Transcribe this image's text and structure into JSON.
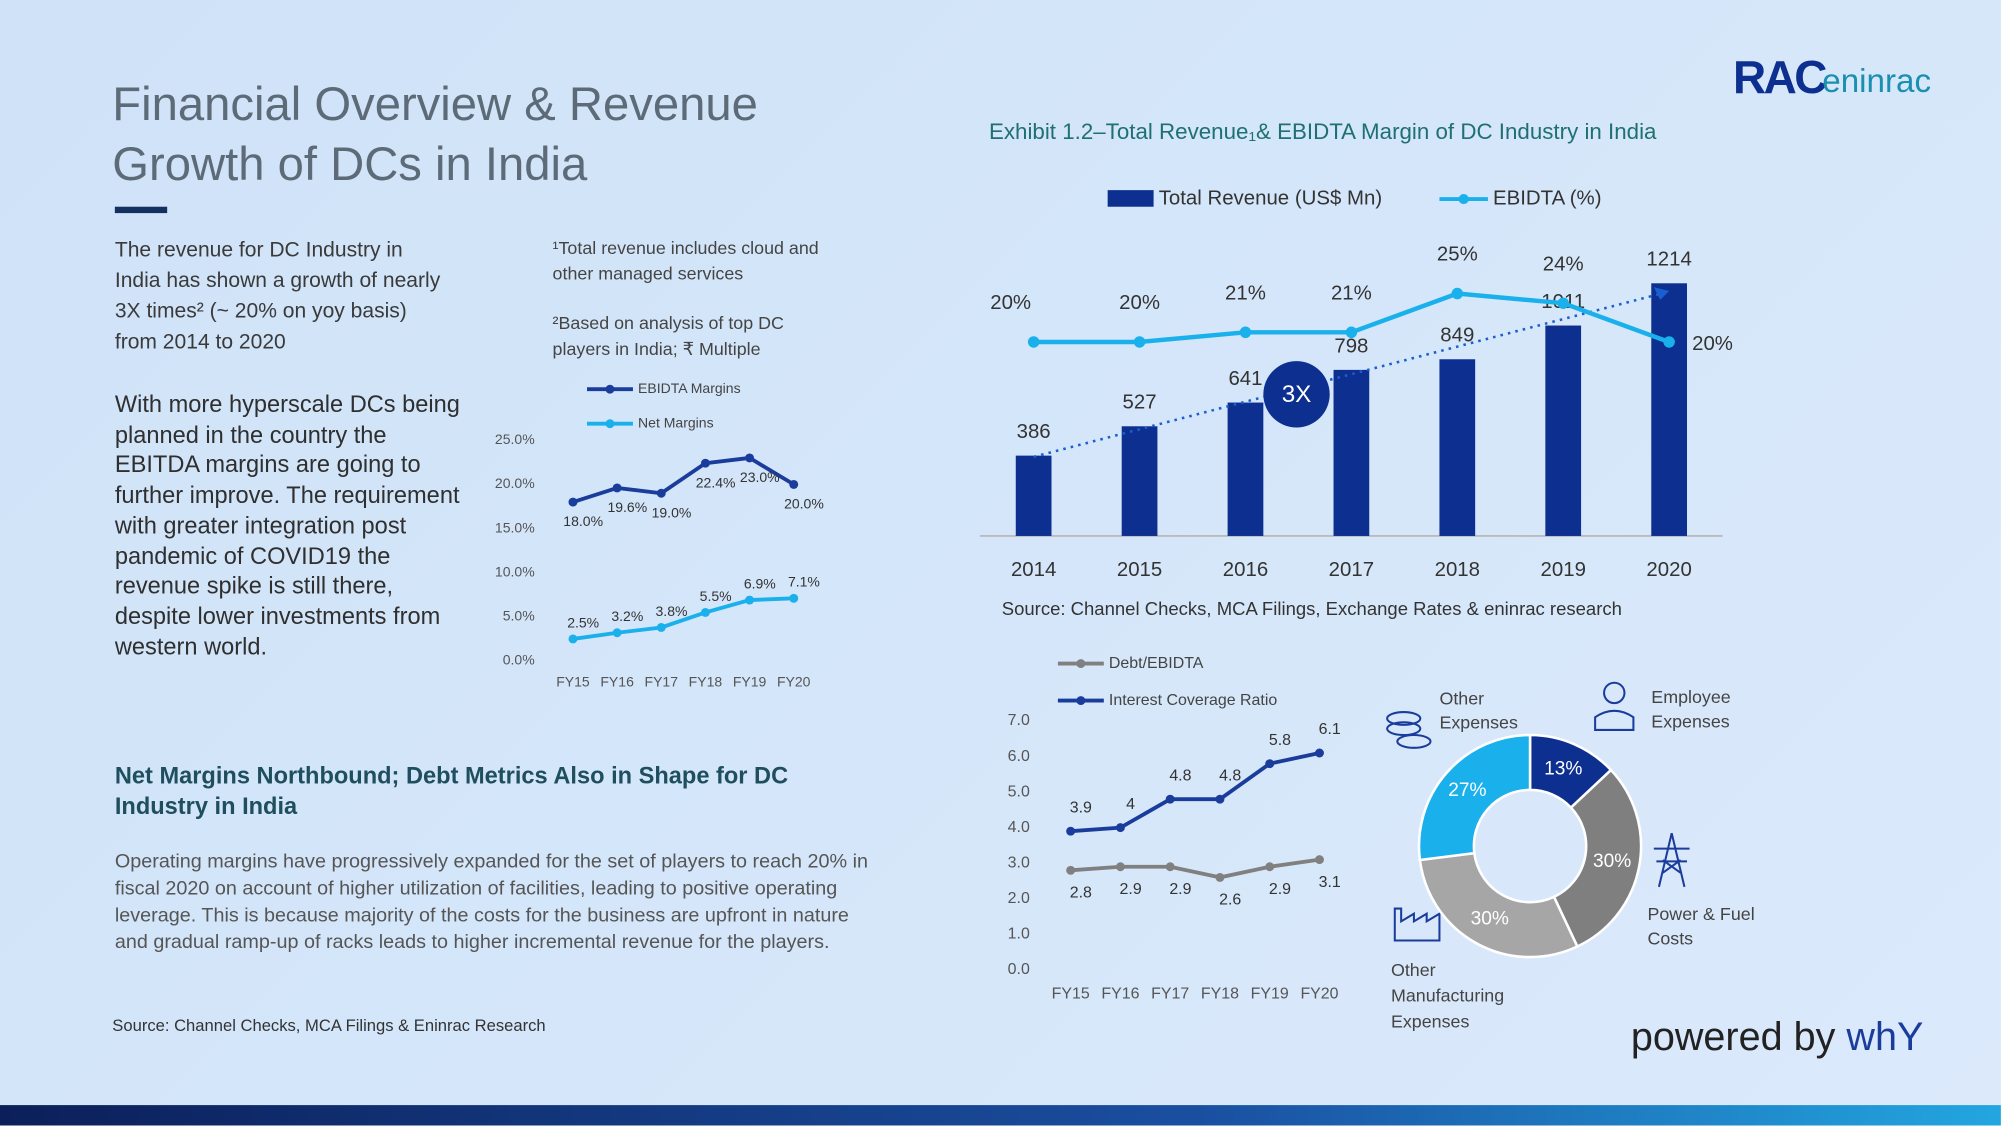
{
  "logo": {
    "mark": "RAC",
    "name": "eninrac"
  },
  "title": "Financial Overview & Revenue Growth of DCs in India",
  "intro": "The revenue for DC Industry in India has shown a growth of nearly 3X times² (~ 20% on yoy basis) from 2014  to 2020",
  "notes": [
    "¹Total revenue includes cloud and other managed services",
    "²Based on analysis of top DC players in India; ₹ Multiple"
  ],
  "outlook": "With more hyperscale DCs being planned in the country the EBITDA margins are going to further improve.  The requirement with greater integration post pandemic of COVID19 the revenue spike is still there, despite lower investments from western world.",
  "subheading": "Net Margins Northbound; Debt Metrics Also in Shape for DC Industry in India",
  "body": "Operating margins have progressively expanded for the set of players to reach 20% in fiscal 2020 on account of higher utilization of facilities, leading to positive operating leverage. This is because majority of the costs for the business are upfront in nature and gradual ramp-up of racks leads to higher incremental revenue for the players.",
  "source": "Source: Channel Checks, MCA Filings & Eninrac Research",
  "powered_by": {
    "text": "powered by",
    "brand": "whY"
  },
  "chart_data": [
    {
      "type": "bar-line",
      "title": "Exhibit 1.2–Total Revenue₁& EBIDTA Margin of DC Industry in India",
      "categories": [
        "2014",
        "2015",
        "2016",
        "2017",
        "2018",
        "2019",
        "2020"
      ],
      "series": [
        {
          "name": "Total Revenue (US$ Mn)",
          "color": "#0d2f8f",
          "values": [
            386,
            527,
            641,
            798,
            849,
            1011,
            1214
          ]
        },
        {
          "name": "EBIDTA (%)",
          "color": "#1ab0ec",
          "axis": "y2",
          "values": [
            20,
            20,
            21,
            21,
            25,
            24,
            20
          ],
          "value_labels": [
            "20%",
            "20%",
            "21%",
            "21%",
            "25%",
            "24%",
            "20%"
          ]
        }
      ],
      "annotation": "3X",
      "source": "Source: Channel Checks, MCA Filings, Exchange Rates & eninrac research"
    },
    {
      "type": "line",
      "categories": [
        "FY15",
        "FY16",
        "FY17",
        "FY18",
        "FY19",
        "FY20"
      ],
      "series": [
        {
          "name": "EBIDTA Margins",
          "color": "#1a3d9c",
          "values": [
            18.0,
            19.6,
            19.0,
            22.4,
            23.0,
            20.0
          ],
          "value_labels": [
            "18.0%",
            "19.6%",
            "19.0%",
            "22.4%",
            "23.0%",
            "20.0%"
          ]
        },
        {
          "name": "Net Margins",
          "color": "#1ab0ec",
          "values": [
            2.5,
            3.2,
            3.8,
            5.5,
            6.9,
            7.1
          ],
          "value_labels": [
            "2.5%",
            "3.2%",
            "3.8%",
            "5.5%",
            "6.9%",
            "7.1%"
          ]
        }
      ],
      "ylim": [
        0,
        25
      ],
      "yticks": [
        {
          "value": 0,
          "label": "0.0%"
        },
        {
          "value": 5,
          "label": "5.0%"
        },
        {
          "value": 10,
          "label": "10.0%"
        },
        {
          "value": 15,
          "label": "15.0%"
        },
        {
          "value": 20,
          "label": "20.0%"
        },
        {
          "value": 25,
          "label": "25.0%"
        }
      ],
      "grid": false
    },
    {
      "type": "line",
      "categories": [
        "FY15",
        "FY16",
        "FY17",
        "FY18",
        "FY19",
        "FY20"
      ],
      "series": [
        {
          "name": "Debt/EBIDTA",
          "color": "#808080",
          "values": [
            2.8,
            2.9,
            2.9,
            2.6,
            2.9,
            3.1
          ]
        },
        {
          "name": "Interest Coverage Ratio",
          "color": "#1a3d9c",
          "values": [
            3.9,
            4.0,
            4.8,
            4.8,
            5.8,
            6.1
          ]
        }
      ],
      "ylim": [
        0,
        7
      ],
      "yticks": [
        {
          "value": 0,
          "label": "0.0"
        },
        {
          "value": 1,
          "label": "1.0"
        },
        {
          "value": 2,
          "label": "2.0"
        },
        {
          "value": 3,
          "label": "3.0"
        },
        {
          "value": 4,
          "label": "4.0"
        },
        {
          "value": 5,
          "label": "5.0"
        },
        {
          "value": 6,
          "label": "6.0"
        },
        {
          "value": 7,
          "label": "7.0"
        }
      ],
      "grid": false
    },
    {
      "type": "donut",
      "categories": [
        "Employee Expenses",
        "Power & Fuel Costs",
        "Other Manufacturing Expenses",
        "Other Expenses"
      ],
      "values": [
        13,
        30,
        30,
        27
      ],
      "value_labels": [
        "13%",
        "30%",
        "30%",
        "27%"
      ],
      "colors": [
        "#0d2f8f",
        "#7f7f7f",
        "#a6a6a6",
        "#1ab0ec"
      ]
    }
  ]
}
